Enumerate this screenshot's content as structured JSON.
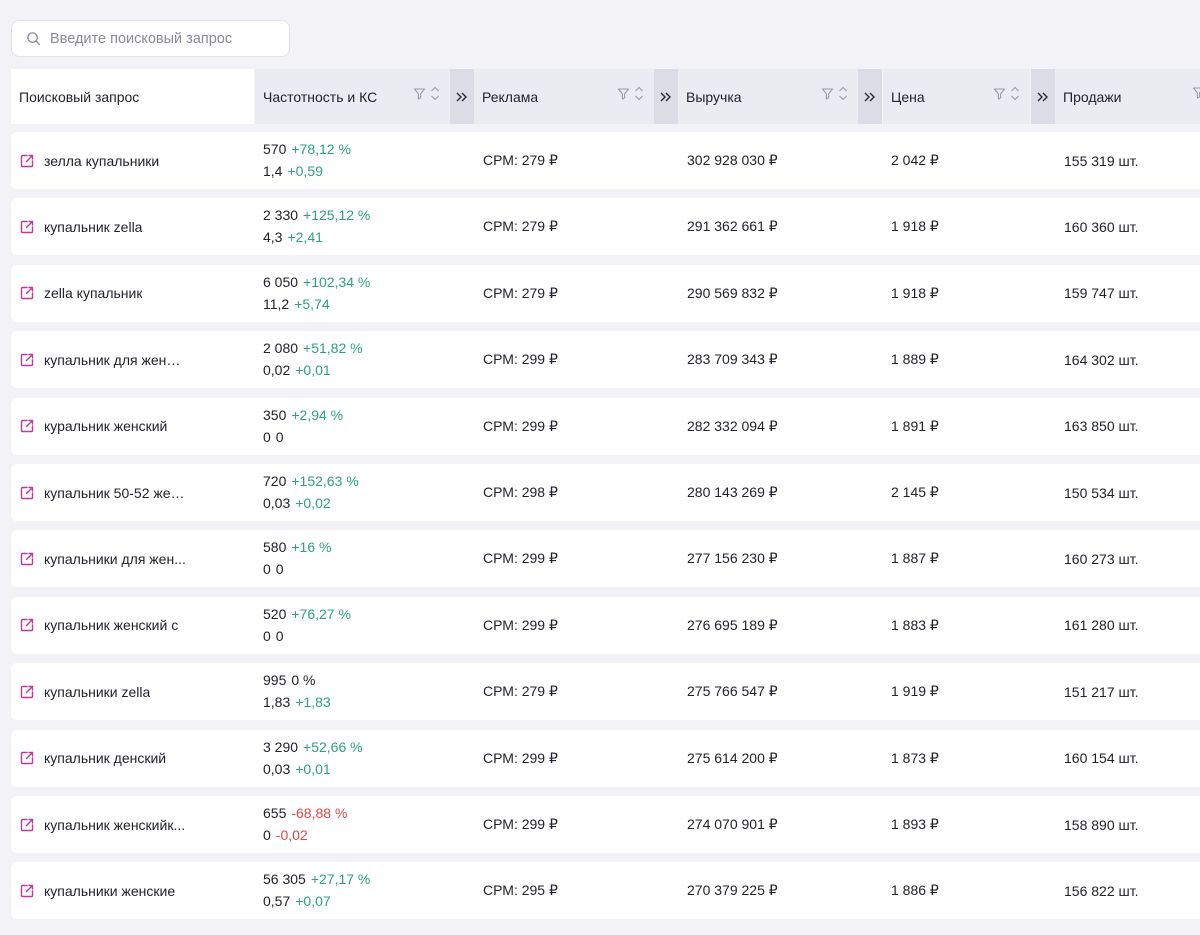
{
  "search": {
    "placeholder": "Введите поисковый запрос"
  },
  "columns": [
    {
      "label": "Поисковый запрос"
    },
    {
      "label": "Частотность и КС"
    },
    {
      "label": "Реклама"
    },
    {
      "label": "Выручка"
    },
    {
      "label": "Цена"
    },
    {
      "label": "Продажи"
    }
  ],
  "rows": [
    {
      "query": "зелла купальники",
      "freq": "570",
      "freq_delta": "+78,12 %",
      "freq_delta_sign": "pos",
      "ks": "1,4",
      "ks_delta": "+0,59",
      "ks_delta_sign": "pos",
      "cpm": "СРМ:  279 ₽",
      "revenue": "302 928 030 ₽",
      "price": "2 042 ₽",
      "sales": "155 319 шт."
    },
    {
      "query": "купальник zella",
      "freq": "2 330",
      "freq_delta": "+125,12 %",
      "freq_delta_sign": "pos",
      "ks": "4,3",
      "ks_delta": "+2,41",
      "ks_delta_sign": "pos",
      "cpm": "СРМ:  279 ₽",
      "revenue": "291 362 661 ₽",
      "price": "1 918 ₽",
      "sales": "160 360 шт."
    },
    {
      "query": "zella купальник",
      "freq": "6 050",
      "freq_delta": "+102,34 %",
      "freq_delta_sign": "pos",
      "ks": "11,2",
      "ks_delta": "+5,74",
      "ks_delta_sign": "pos",
      "cpm": "СРМ:  279 ₽",
      "revenue": "290 569 832 ₽",
      "price": "1 918 ₽",
      "sales": "159 747 шт."
    },
    {
      "query": "купальник для женщ...",
      "freq": "2 080",
      "freq_delta": "+51,82 %",
      "freq_delta_sign": "pos",
      "ks": "0,02",
      "ks_delta": "+0,01",
      "ks_delta_sign": "pos",
      "cpm": "СРМ:  299 ₽",
      "revenue": "283 709 343 ₽",
      "price": "1 889 ₽",
      "sales": "164 302 шт."
    },
    {
      "query": "куральник женский",
      "freq": "350",
      "freq_delta": "+2,94 %",
      "freq_delta_sign": "pos",
      "ks": "0",
      "ks_delta": "0",
      "ks_delta_sign": "neu",
      "cpm": "СРМ:  299 ₽",
      "revenue": "282 332 094 ₽",
      "price": "1 891 ₽",
      "sales": "163 850 шт."
    },
    {
      "query": "купальник 50-52 жен...",
      "freq": "720",
      "freq_delta": "+152,63 %",
      "freq_delta_sign": "pos",
      "ks": "0,03",
      "ks_delta": "+0,02",
      "ks_delta_sign": "pos",
      "cpm": "СРМ:  298 ₽",
      "revenue": "280 143 269 ₽",
      "price": "2 145 ₽",
      "sales": "150 534 шт."
    },
    {
      "query": "купальники для жен...",
      "freq": "580",
      "freq_delta": "+16 %",
      "freq_delta_sign": "pos",
      "ks": "0",
      "ks_delta": "0",
      "ks_delta_sign": "neu",
      "cpm": "СРМ:  299 ₽",
      "revenue": "277 156 230 ₽",
      "price": "1 887 ₽",
      "sales": "160 273 шт."
    },
    {
      "query": "купальник женский с",
      "freq": "520",
      "freq_delta": "+76,27 %",
      "freq_delta_sign": "pos",
      "ks": "0",
      "ks_delta": "0",
      "ks_delta_sign": "neu",
      "cpm": "СРМ:  299 ₽",
      "revenue": "276 695 189 ₽",
      "price": "1 883 ₽",
      "sales": "161 280 шт."
    },
    {
      "query": "купальники zella",
      "freq": "995",
      "freq_delta": "0 %",
      "freq_delta_sign": "neu",
      "ks": "1,83",
      "ks_delta": "+1,83",
      "ks_delta_sign": "pos",
      "cpm": "СРМ:  279 ₽",
      "revenue": "275 766 547 ₽",
      "price": "1 919 ₽",
      "sales": "151 217 шт."
    },
    {
      "query": "купальник денский",
      "freq": "3 290",
      "freq_delta": "+52,66 %",
      "freq_delta_sign": "pos",
      "ks": "0,03",
      "ks_delta": "+0,01",
      "ks_delta_sign": "pos",
      "cpm": "СРМ:  299 ₽",
      "revenue": "275 614 200 ₽",
      "price": "1 873 ₽",
      "sales": "160 154 шт."
    },
    {
      "query": "купальник женскийк...",
      "freq": "655",
      "freq_delta": "-68,88 %",
      "freq_delta_sign": "neg",
      "ks": "0",
      "ks_delta": "-0,02",
      "ks_delta_sign": "neg",
      "cpm": "СРМ:  299 ₽",
      "revenue": "274 070 901 ₽",
      "price": "1 893 ₽",
      "sales": "158 890 шт."
    },
    {
      "query": "купальники женские",
      "freq": "56 305",
      "freq_delta": "+27,17 %",
      "freq_delta_sign": "pos",
      "ks": "0,57",
      "ks_delta": "+0,07",
      "ks_delta_sign": "pos",
      "cpm": "СРМ:  295 ₽",
      "revenue": "270 379 225 ₽",
      "price": "1 886 ₽",
      "sales": "156 822 шт."
    }
  ],
  "colors": {
    "positive": "#2ea37a",
    "negative": "#e04848",
    "link_icon": "#c0399a",
    "header_bg": "#ebebf2",
    "page_bg": "#f3f3f7"
  },
  "icons": {
    "search": "search-icon",
    "filter": "filter-icon",
    "sort": "sort-icon",
    "expand": "double-chevron-right-icon",
    "link": "external-link-icon"
  }
}
